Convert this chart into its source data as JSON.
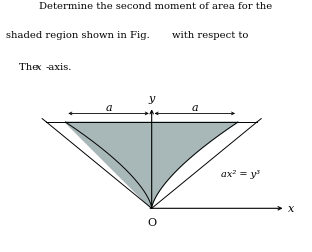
{
  "title_line1": "        Determine the second moment of area for the",
  "title_line2": "shaded region shown in Fig.",
  "title_line2_gap": "        with respect to",
  "title_line3": "    The x-axis.",
  "curve_label": "ax² = y³",
  "a_label": "a",
  "x_label": "x",
  "y_label": "y",
  "o_label": "O",
  "shade_color": "#a8b8b8",
  "shade_alpha": 1.0,
  "line_color": "#000000",
  "a_value": 1.0,
  "fig_width": 3.12,
  "fig_height": 2.53,
  "dpi": 100
}
